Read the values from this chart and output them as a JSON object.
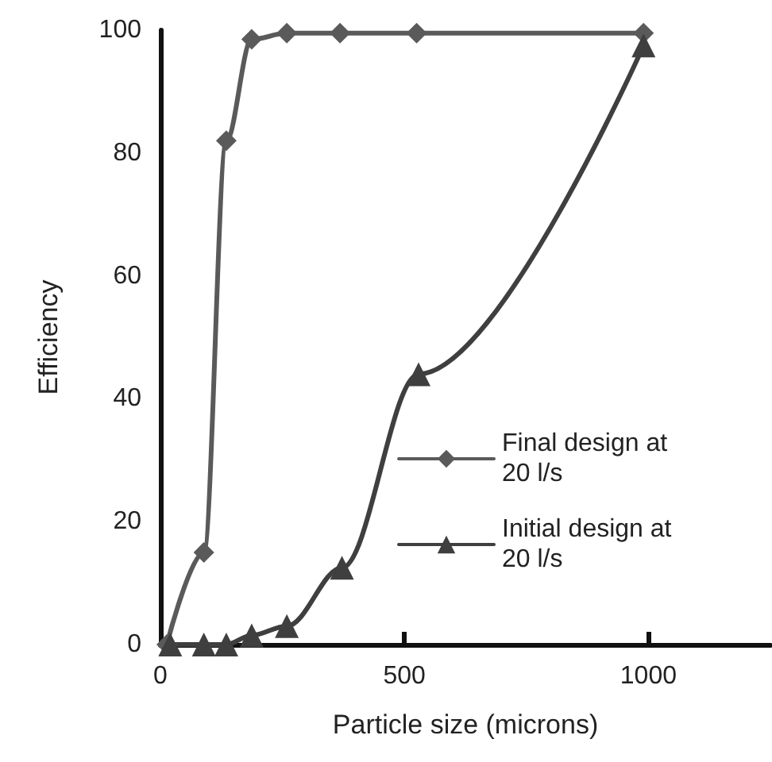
{
  "chart_data": {
    "type": "line",
    "xlabel": "Particle size (microns)",
    "ylabel": "Efficiency",
    "xlim": [
      0,
      1250
    ],
    "xticks": [
      0,
      500,
      1000
    ],
    "ylim": [
      0,
      100
    ],
    "yticks": [
      0,
      20,
      40,
      60,
      80,
      100
    ],
    "grid": false,
    "legend": "right",
    "line_style": "solid",
    "series": [
      {
        "name": "Final design at 20 l/s",
        "color": "#5a5a5a",
        "marker": "diamond",
        "x": [
          13,
          89,
          135,
          187,
          259,
          368,
          525,
          990
        ],
        "values": [
          0,
          15,
          82,
          98.5,
          99.5,
          99.5,
          99.5,
          99.5
        ]
      },
      {
        "name": "Initial design at 20 l/s",
        "color": "#3f3f3f",
        "marker": "triangle",
        "x": [
          20,
          89,
          135,
          187,
          259,
          372,
          529,
          990
        ],
        "values": [
          0,
          0,
          0,
          1.5,
          3,
          12.5,
          44,
          97.5
        ]
      }
    ]
  }
}
